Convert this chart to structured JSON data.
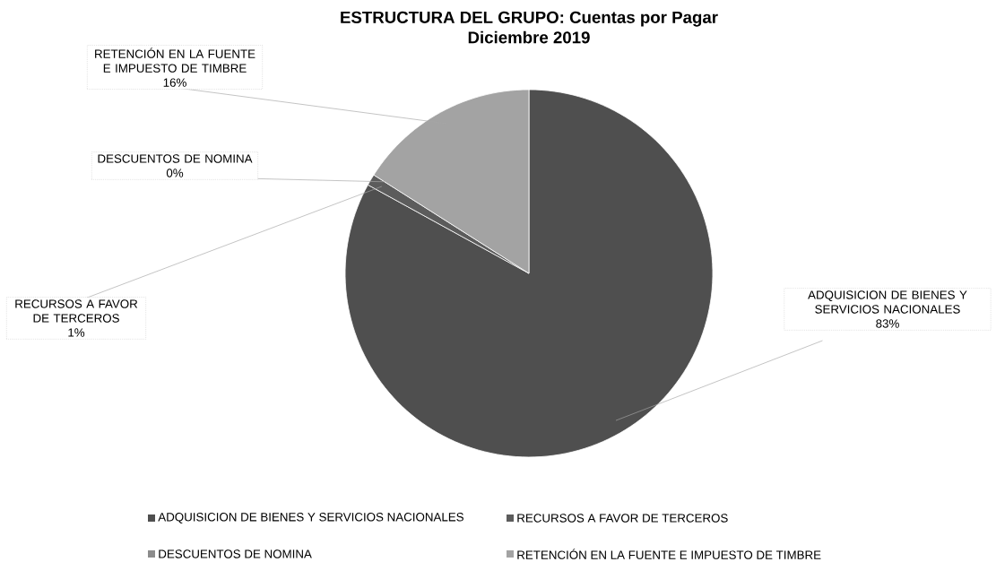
{
  "chart_data": {
    "type": "pie",
    "title": "ESTRUCTURA DEL GRUPO: Cuentas por Pagar",
    "subtitle": "Diciembre 2019",
    "categories": [
      "ADQUISICION DE BIENES Y SERVICIOS NACIONALES",
      "RECURSOS A FAVOR DE TERCEROS",
      "DESCUENTOS DE NOMINA",
      "RETENCIÓN EN LA FUENTE E IMPUESTO DE TIMBRE"
    ],
    "values": [
      83,
      1,
      0,
      16
    ],
    "value_labels": [
      "83%",
      "1%",
      "0%",
      "16%"
    ],
    "colors": [
      "#4f4f4f",
      "#5c5c5c",
      "#8c8c8c",
      "#a3a3a3"
    ],
    "legend": "bottom"
  }
}
